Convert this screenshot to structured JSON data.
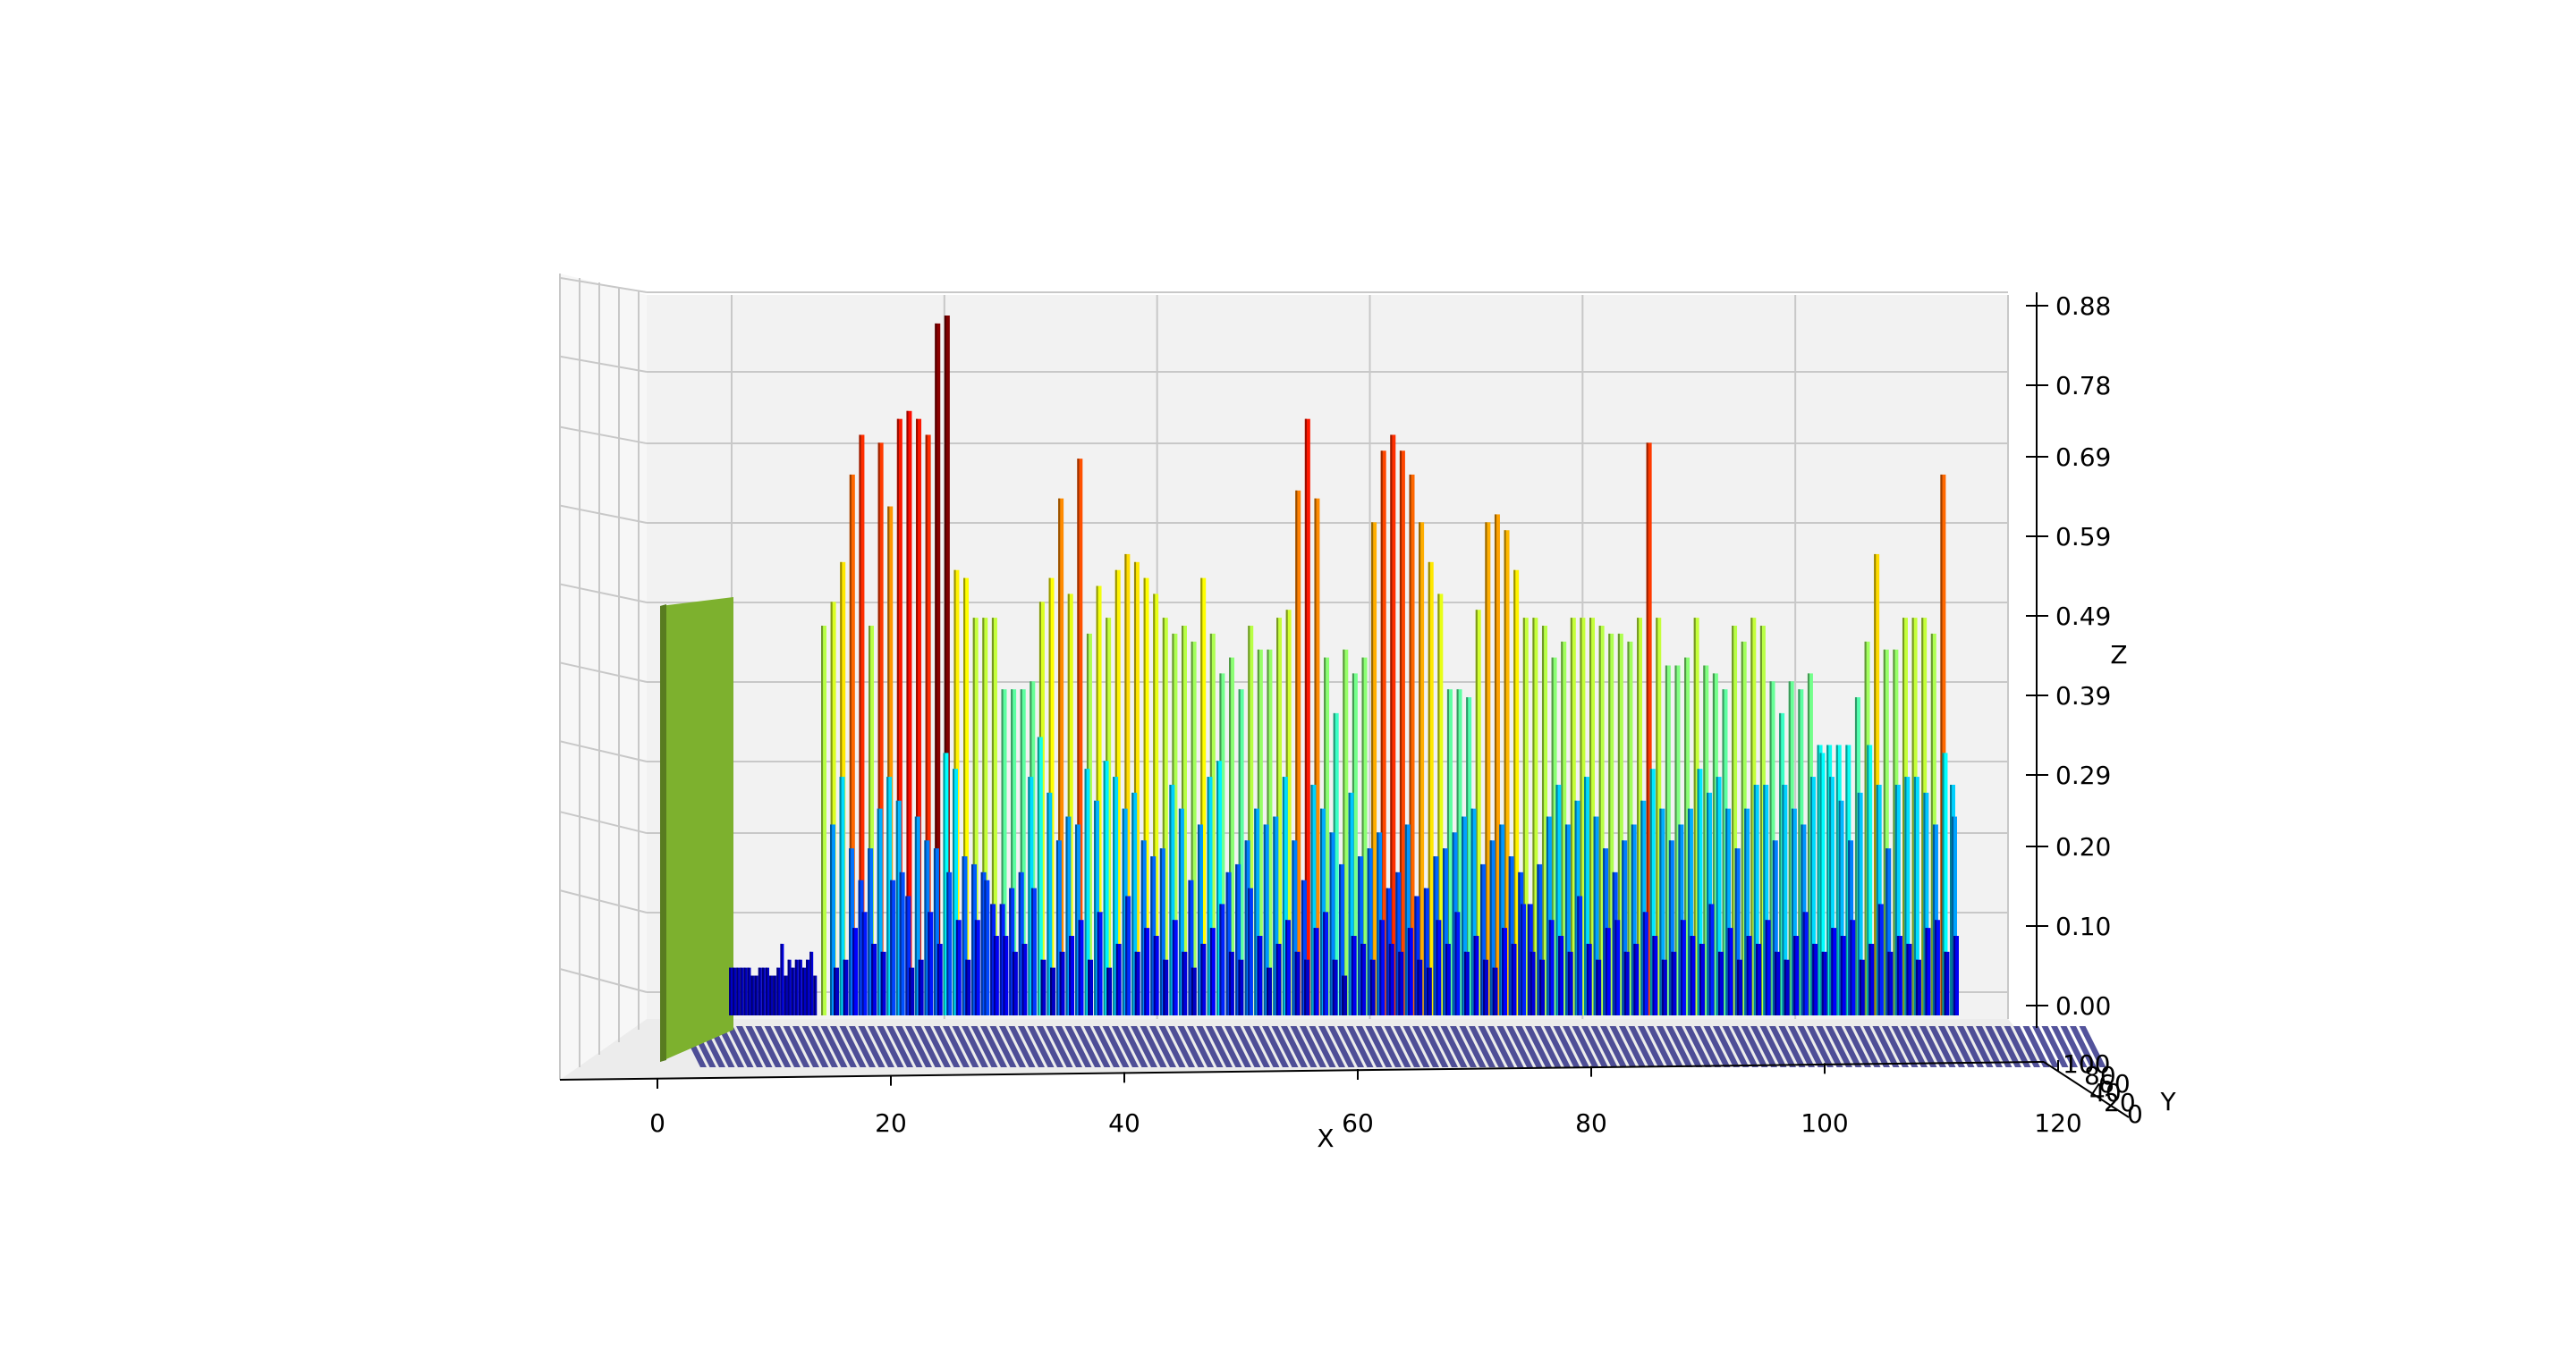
{
  "chart_data": {
    "type": "bar3d",
    "title": "",
    "xlabel": "X",
    "ylabel": "Y",
    "zlabel": "Z",
    "xlim": [
      -8,
      120
    ],
    "ylim": [
      0,
      100
    ],
    "zlim": [
      0,
      0.88
    ],
    "x_ticks": [
      "0",
      "20",
      "40",
      "60",
      "80",
      "100",
      "120"
    ],
    "y_ticks": [
      "0",
      "20",
      "40",
      "60",
      "80",
      "100"
    ],
    "z_ticks": [
      "0.00",
      "0.10",
      "0.20",
      "0.29",
      "0.39",
      "0.49",
      "0.59",
      "0.69",
      "0.78",
      "0.88"
    ],
    "grid": true,
    "colormap": "jet",
    "pane_color": "#f2f2f2",
    "floor_bar_color": "#1a1a7a",
    "front_block": {
      "x_range": [
        0,
        6
      ],
      "z": 0.49,
      "color": "#7db12e"
    },
    "tall_bar_heights": [
      0.49,
      0.52,
      0.57,
      0.68,
      0.73,
      0.49,
      0.72,
      0.64,
      0.75,
      0.76,
      0.75,
      0.73,
      0.87,
      0.88,
      0.56,
      0.55,
      0.5,
      0.5,
      0.5,
      0.41,
      0.41,
      0.41,
      0.42,
      0.52,
      0.55,
      0.65,
      0.53,
      0.7,
      0.48,
      0.54,
      0.5,
      0.56,
      0.58,
      0.57,
      0.55,
      0.53,
      0.5,
      0.48,
      0.49,
      0.47,
      0.55,
      0.48,
      0.43,
      0.45,
      0.41,
      0.49,
      0.46,
      0.46,
      0.5,
      0.51,
      0.66,
      0.75,
      0.65,
      0.45,
      0.38,
      0.46,
      0.43,
      0.45,
      0.62,
      0.71,
      0.73,
      0.71,
      0.68,
      0.62,
      0.57,
      0.53,
      0.41,
      0.41,
      0.4,
      0.51,
      0.62,
      0.63,
      0.61,
      0.56,
      0.5,
      0.5,
      0.49,
      0.45,
      0.47,
      0.5,
      0.5,
      0.5,
      0.49,
      0.48,
      0.48,
      0.47,
      0.5,
      0.72,
      0.5,
      0.44,
      0.44,
      0.45,
      0.5,
      0.44,
      0.43,
      0.41,
      0.49,
      0.47,
      0.5,
      0.49,
      0.42,
      0.38,
      0.42,
      0.41,
      0.43,
      0.34,
      0.34,
      0.34,
      0.34,
      0.4,
      0.47,
      0.58,
      0.46,
      0.46,
      0.5,
      0.5,
      0.5,
      0.48,
      0.68,
      0.29
    ],
    "mid_bar_heights": [
      0.24,
      0.3,
      0.21,
      0.17,
      0.21,
      0.26,
      0.3,
      0.27,
      0.15,
      0.25,
      0.22,
      0.21,
      0.33,
      0.31,
      0.2,
      0.19,
      0.18,
      0.14,
      0.14,
      0.16,
      0.18,
      0.3,
      0.35,
      0.28,
      0.22,
      0.25,
      0.24,
      0.31,
      0.27,
      0.32,
      0.3,
      0.26,
      0.28,
      0.22,
      0.2,
      0.21,
      0.29,
      0.26,
      0.17,
      0.24,
      0.3,
      0.32,
      0.18,
      0.19,
      0.22,
      0.26,
      0.24,
      0.25,
      0.3,
      0.22,
      0.17,
      0.29,
      0.26,
      0.23,
      0.19,
      0.28,
      0.2,
      0.21,
      0.23,
      0.16,
      0.18,
      0.24,
      0.15,
      0.16,
      0.2,
      0.21,
      0.23,
      0.25,
      0.26,
      0.19,
      0.22,
      0.24,
      0.2,
      0.18,
      0.14,
      0.19,
      0.25,
      0.29,
      0.24,
      0.27,
      0.3,
      0.25,
      0.21,
      0.18,
      0.22,
      0.24,
      0.27,
      0.31,
      0.26,
      0.22,
      0.24,
      0.26,
      0.31,
      0.28,
      0.3,
      0.26,
      0.21,
      0.26,
      0.29,
      0.29,
      0.22,
      0.29,
      0.26,
      0.24,
      0.3,
      0.33,
      0.3,
      0.27,
      0.22,
      0.28,
      0.34,
      0.29,
      0.21,
      0.29,
      0.3,
      0.3,
      0.28,
      0.24,
      0.33,
      0.25
    ],
    "low_bar_heights": [
      0.06,
      0.07,
      0.11,
      0.13,
      0.09,
      0.08,
      0.17,
      0.18,
      0.06,
      0.07,
      0.13,
      0.09,
      0.18,
      0.12,
      0.07,
      0.12,
      0.17,
      0.1,
      0.1,
      0.08,
      0.09,
      0.16,
      0.07,
      0.06,
      0.08,
      0.1,
      0.12,
      0.07,
      0.13,
      0.06,
      0.09,
      0.15,
      0.08,
      0.11,
      0.1,
      0.07,
      0.12,
      0.08,
      0.06,
      0.09,
      0.11,
      0.14,
      0.08,
      0.07,
      0.16,
      0.1,
      0.06,
      0.09,
      0.12,
      0.08,
      0.07,
      0.11,
      0.13,
      0.07,
      0.05,
      0.1,
      0.09,
      0.07,
      0.12,
      0.09,
      0.08,
      0.11,
      0.07,
      0.06,
      0.12,
      0.09,
      0.13,
      0.08,
      0.1,
      0.07,
      0.06,
      0.11,
      0.09,
      0.14,
      0.08,
      0.07,
      0.12,
      0.1,
      0.08,
      0.15,
      0.09,
      0.07,
      0.11,
      0.12,
      0.08,
      0.09,
      0.13,
      0.1,
      0.07,
      0.08,
      0.12,
      0.1,
      0.09,
      0.14,
      0.08,
      0.11,
      0.07,
      0.1,
      0.09,
      0.12,
      0.08,
      0.07,
      0.1,
      0.13,
      0.09,
      0.08,
      0.11,
      0.1,
      0.12,
      0.07,
      0.09,
      0.14,
      0.08,
      0.1,
      0.09,
      0.07,
      0.11,
      0.12,
      0.08,
      0.1
    ],
    "left_small_bar_heights": [
      0.06,
      0.06,
      0.06,
      0.06,
      0.06,
      0.06,
      0.05,
      0.05,
      0.06,
      0.06,
      0.06,
      0.05,
      0.05,
      0.06,
      0.09,
      0.05,
      0.07,
      0.06,
      0.07,
      0.07,
      0.06,
      0.07,
      0.08,
      0.05
    ]
  }
}
